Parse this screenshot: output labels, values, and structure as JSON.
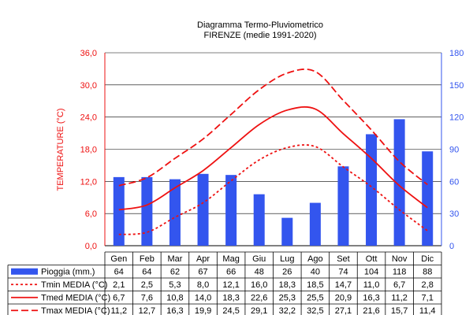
{
  "chart_data": {
    "type": "bar",
    "title": "Diagramma Termo-Pluviometrico",
    "subtitle": "FIRENZE (medie 1991-2020)",
    "categories": [
      "Gen",
      "Feb",
      "Mar",
      "Apr",
      "Mag",
      "Giu",
      "Lug",
      "Ago",
      "Set",
      "Ott",
      "Nov",
      "Dic"
    ],
    "ylabel_left": "TEMPERATURE (°C)",
    "ylim_left": [
      0,
      36
    ],
    "yticks_left": [
      "0,0",
      "6,0",
      "12,0",
      "18,0",
      "24,0",
      "30,0",
      "36,0"
    ],
    "ylim_right": [
      0,
      180
    ],
    "yticks_right": [
      "0",
      "30",
      "60",
      "90",
      "120",
      "150",
      "180"
    ],
    "series": [
      {
        "name": "Pioggia (mm.)",
        "kind": "bar",
        "axis": "right",
        "color": "#3355ee",
        "values": [
          64,
          64,
          62,
          67,
          66,
          48,
          26,
          40,
          74,
          104,
          118,
          88
        ],
        "labels": [
          "64",
          "64",
          "62",
          "67",
          "66",
          "48",
          "26",
          "40",
          "74",
          "104",
          "118",
          "88"
        ]
      },
      {
        "name": "Tmin MEDIA (°C)",
        "kind": "line",
        "style": "dotted",
        "axis": "left",
        "color": "#ee1111",
        "values": [
          2.1,
          2.5,
          5.3,
          8.0,
          12.1,
          16.0,
          18.3,
          18.5,
          14.7,
          11.0,
          6.7,
          2.8
        ],
        "labels": [
          "2,1",
          "2,5",
          "5,3",
          "8,0",
          "12,1",
          "16,0",
          "18,3",
          "18,5",
          "14,7",
          "11,0",
          "6,7",
          "2,8"
        ]
      },
      {
        "name": "Tmed MEDIA (°C)",
        "kind": "line",
        "style": "solid",
        "axis": "left",
        "color": "#ee1111",
        "values": [
          6.7,
          7.6,
          10.8,
          14.0,
          18.3,
          22.6,
          25.3,
          25.5,
          20.9,
          16.3,
          11.2,
          7.1
        ],
        "labels": [
          "6,7",
          "7,6",
          "10,8",
          "14,0",
          "18,3",
          "22,6",
          "25,3",
          "25,5",
          "20,9",
          "16,3",
          "11,2",
          "7,1"
        ]
      },
      {
        "name": "Tmax MEDIA (°C)",
        "kind": "line",
        "style": "dashed",
        "axis": "left",
        "color": "#ee1111",
        "values": [
          11.2,
          12.7,
          16.3,
          19.9,
          24.5,
          29.1,
          32.2,
          32.5,
          27.1,
          21.6,
          15.7,
          11.4
        ],
        "labels": [
          "11,2",
          "12,7",
          "16,3",
          "19,9",
          "24,5",
          "29,1",
          "32,2",
          "32,5",
          "27,1",
          "21,6",
          "15,7",
          "11,4"
        ]
      }
    ],
    "colors": {
      "temp_axis": "#ee1111",
      "rain_axis": "#3355ee",
      "grid": "#000000"
    },
    "legend": "data-table"
  }
}
